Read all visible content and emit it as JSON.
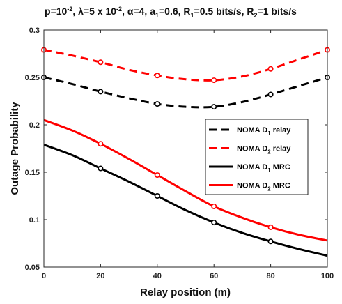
{
  "chart_data": {
    "type": "line",
    "title": {
      "parts": [
        {
          "t": "p=10"
        },
        {
          "t": "-2",
          "sup": true
        },
        {
          "t": ", "
        },
        {
          "t": "λ",
          "sym": true
        },
        {
          "t": "=5 x 10"
        },
        {
          "t": "-2",
          "sup": true
        },
        {
          "t": ", "
        },
        {
          "t": "α",
          "sym": true
        },
        {
          "t": "=4, a"
        },
        {
          "t": "1",
          "sub": true
        },
        {
          "t": "=0.6, R"
        },
        {
          "t": "1",
          "sub": true
        },
        {
          "t": "=0.5 bits/s, R"
        },
        {
          "t": "2",
          "sub": true
        },
        {
          "t": "=1 bits/s"
        }
      ]
    },
    "xlabel": "Relay position (m)",
    "ylabel": "Outage Probability",
    "xlim": [
      0,
      100
    ],
    "ylim": [
      0.05,
      0.3
    ],
    "xticks": [
      0,
      20,
      40,
      60,
      80,
      100
    ],
    "yticks": [
      0.05,
      0.1,
      0.15,
      0.2,
      0.25,
      0.3
    ],
    "ytick_labels": [
      "0.05",
      "0.1",
      "0.15",
      "0.2",
      "0.25",
      "0.3"
    ],
    "grid": false,
    "legend_position": "middle-right",
    "series": [
      {
        "label_main": "NOMA D",
        "label_sub": "1",
        "label_tail": " relay",
        "color": "#000000",
        "dash": true,
        "x": [
          0,
          10,
          20,
          30,
          40,
          50,
          60,
          70,
          80,
          90,
          100
        ],
        "y": [
          0.25,
          0.243,
          0.235,
          0.228,
          0.222,
          0.219,
          0.219,
          0.224,
          0.232,
          0.241,
          0.25
        ],
        "markers_x": [
          0,
          20,
          40,
          60,
          80,
          100
        ],
        "markers_y": [
          0.25,
          0.235,
          0.222,
          0.219,
          0.232,
          0.25
        ]
      },
      {
        "label_main": "NOMA D",
        "label_sub": "2",
        "label_tail": " relay",
        "color": "#ff0000",
        "dash": true,
        "x": [
          0,
          10,
          20,
          30,
          40,
          50,
          60,
          70,
          80,
          90,
          100
        ],
        "y": [
          0.279,
          0.273,
          0.266,
          0.258,
          0.252,
          0.248,
          0.247,
          0.251,
          0.259,
          0.269,
          0.279
        ],
        "markers_x": [
          0,
          20,
          40,
          60,
          80,
          100
        ],
        "markers_y": [
          0.279,
          0.266,
          0.252,
          0.247,
          0.259,
          0.279
        ]
      },
      {
        "label_main": "NOMA D",
        "label_sub": "1",
        "label_tail": " MRC",
        "color": "#000000",
        "dash": false,
        "x": [
          0,
          10,
          20,
          30,
          40,
          50,
          60,
          70,
          80,
          90,
          100
        ],
        "y": [
          0.179,
          0.168,
          0.154,
          0.14,
          0.125,
          0.11,
          0.097,
          0.086,
          0.077,
          0.069,
          0.062
        ],
        "markers_x": [
          20,
          40,
          60,
          80
        ],
        "markers_y": [
          0.154,
          0.125,
          0.097,
          0.077
        ]
      },
      {
        "label_main": "NOMA D",
        "label_sub": "2",
        "label_tail": " MRC",
        "color": "#ff0000",
        "dash": false,
        "x": [
          0,
          10,
          20,
          30,
          40,
          50,
          60,
          70,
          80,
          90,
          100
        ],
        "y": [
          0.205,
          0.194,
          0.18,
          0.164,
          0.147,
          0.13,
          0.114,
          0.102,
          0.092,
          0.084,
          0.078
        ],
        "markers_x": [
          20,
          40,
          60,
          80
        ],
        "markers_y": [
          0.18,
          0.147,
          0.114,
          0.092
        ]
      }
    ]
  }
}
